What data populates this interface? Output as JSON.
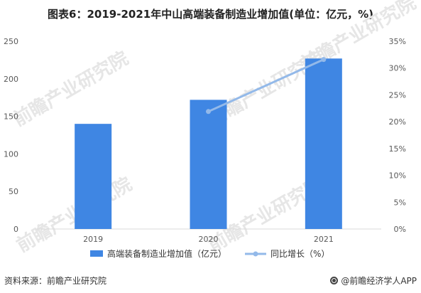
{
  "title": "图表6：2019-2021年中山高端装备制造业增加值(单位：亿元，%)",
  "source": "资料来源：前瞻产业研究院",
  "credit": "@前瞻经济学人APP",
  "watermark": "前瞻产业研究院",
  "colors": {
    "bar": "#3f86e3",
    "line": "#93b9e9",
    "axis_text": "#595959",
    "grid": "#d9d9d9"
  },
  "chart_data": {
    "type": "bar",
    "categories": [
      "2019",
      "2020",
      "2021"
    ],
    "series": [
      {
        "name": "高端装备制造业增加值（亿元）",
        "type": "bar",
        "axis": "left",
        "values": [
          140,
          172,
          227
        ]
      },
      {
        "name": "同比增长（%）",
        "type": "line",
        "axis": "right",
        "values": [
          null,
          21.9,
          31.6
        ]
      }
    ],
    "ylim_left": [
      0,
      250
    ],
    "yticks_left": [
      "0",
      "50",
      "100",
      "150",
      "200",
      "250"
    ],
    "ylim_right": [
      0,
      35
    ],
    "yticks_right": [
      "0%",
      "5%",
      "10%",
      "15%",
      "20%",
      "25%",
      "30%",
      "35%"
    ],
    "legend_position": "bottom",
    "grid": false
  }
}
